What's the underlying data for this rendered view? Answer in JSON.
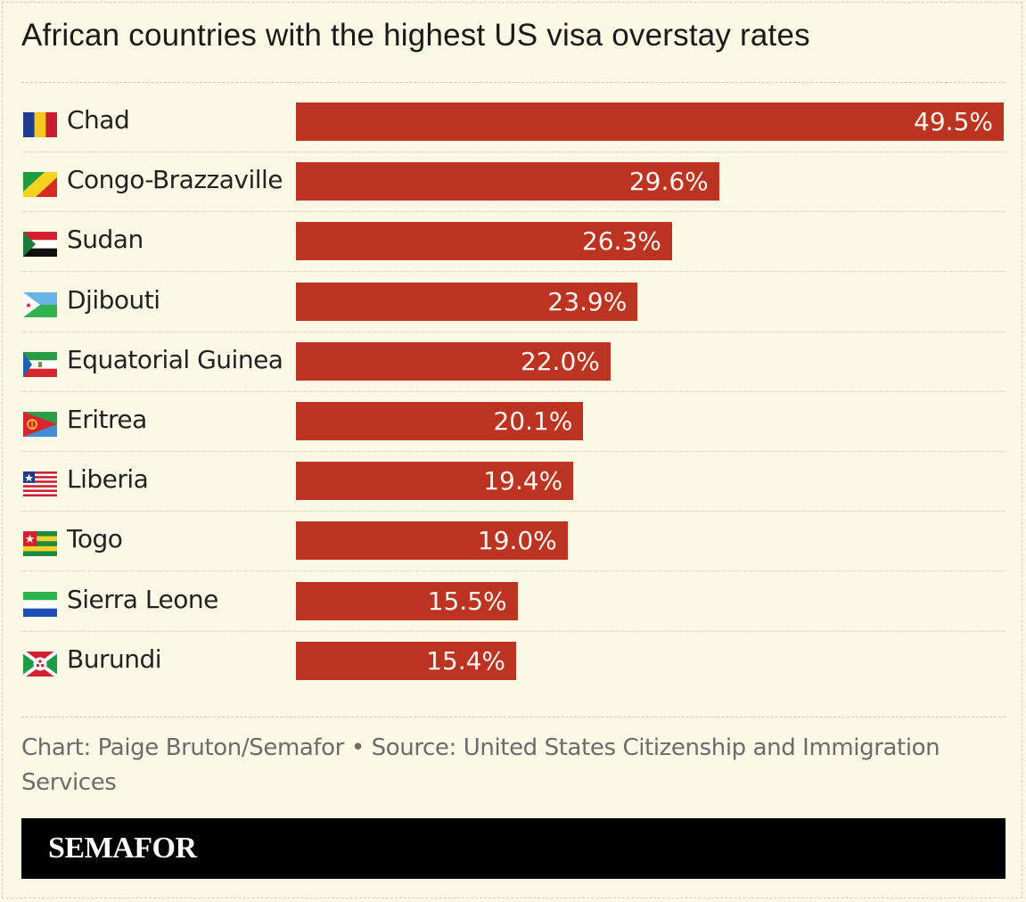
{
  "chart_data": {
    "type": "bar",
    "orientation": "horizontal",
    "title": "African countries with the highest US visa overstay rates",
    "categories": [
      "Chad",
      "Congo-Brazzaville",
      "Sudan",
      "Djibouti",
      "Equatorial Guinea",
      "Eritrea",
      "Liberia",
      "Togo",
      "Sierra Leone",
      "Burundi"
    ],
    "values": [
      49.5,
      29.6,
      26.3,
      23.9,
      22.0,
      20.1,
      19.4,
      19.0,
      15.5,
      15.4
    ],
    "labels": [
      "49.5%",
      "29.6%",
      "26.3%",
      "23.9%",
      "22.0%",
      "20.1%",
      "19.4%",
      "19.0%",
      "15.5%",
      "15.4%"
    ],
    "flags": [
      "chad-flag-icon",
      "congo-flag-icon",
      "sudan-flag-icon",
      "djibouti-flag-icon",
      "equatorial-guinea-flag-icon",
      "eritrea-flag-icon",
      "liberia-flag-icon",
      "togo-flag-icon",
      "sierra-leone-flag-icon",
      "burundi-flag-icon"
    ],
    "unit": "%",
    "xlim": [
      0,
      49.5
    ],
    "bar_color": "#bd3322"
  },
  "footer": {
    "credit": "Chart: Paige Bruton/Semafor  • Source: United States Citizenship and Immigration Services"
  },
  "brand": {
    "name": "SEMAFOR"
  }
}
